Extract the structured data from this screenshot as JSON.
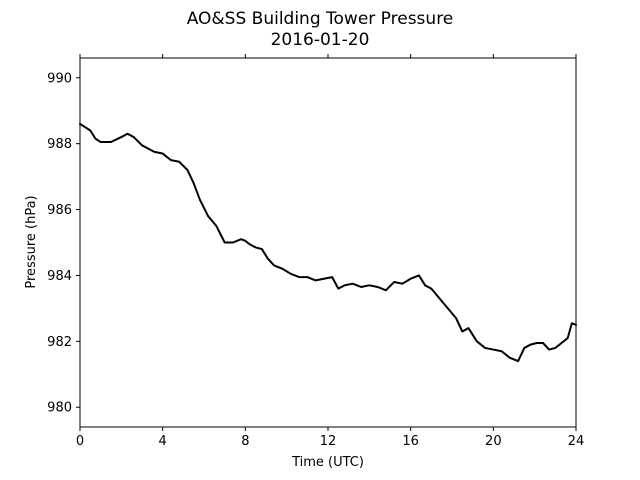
{
  "chart_data": {
    "type": "line",
    "title": "AO&SS Building Tower Pressure",
    "subtitle": "2016-01-20",
    "xlabel": "Time (UTC)",
    "ylabel": "Pressure (hPa)",
    "xlim": [
      0,
      24
    ],
    "ylim": [
      979.4,
      990.6
    ],
    "xticks": [
      0,
      4,
      8,
      12,
      16,
      20,
      24
    ],
    "xtick_labels": [
      "0",
      "4",
      "8",
      "12",
      "16",
      "20",
      "24"
    ],
    "yticks": [
      980,
      982,
      984,
      986,
      988,
      990
    ],
    "ytick_labels": [
      "980",
      "982",
      "984",
      "986",
      "988",
      "990"
    ],
    "grid": false,
    "legend": "none",
    "line_color": "#000000",
    "series": [
      {
        "x": [
          0,
          0.25,
          0.5,
          0.75,
          1.0,
          1.5,
          2.0,
          2.3,
          2.6,
          3.0,
          3.3,
          3.6,
          4.0,
          4.4,
          4.8,
          5.2,
          5.5,
          5.8,
          6.2,
          6.6,
          7.0,
          7.4,
          7.8,
          8.0,
          8.2,
          8.5,
          8.8,
          9.1,
          9.4,
          9.8,
          10.2,
          10.6,
          11.0,
          11.4,
          11.8,
          12.2,
          12.5,
          12.8,
          13.2,
          13.6,
          14.0,
          14.4,
          14.8,
          15.2,
          15.6,
          16.0,
          16.4,
          16.7,
          17.0,
          17.4,
          17.8,
          18.2,
          18.5,
          18.8,
          19.2,
          19.6,
          20.0,
          20.4,
          20.8,
          21.2,
          21.5,
          21.8,
          22.1,
          22.4,
          22.7,
          23.0,
          23.3,
          23.6,
          23.8,
          24.0
        ],
        "y": [
          988.6,
          988.5,
          988.4,
          988.15,
          988.05,
          988.05,
          988.2,
          988.3,
          988.2,
          987.95,
          987.85,
          987.75,
          987.7,
          987.5,
          987.45,
          987.2,
          986.8,
          986.3,
          985.8,
          985.5,
          985.0,
          985.0,
          985.1,
          985.05,
          984.95,
          984.85,
          984.8,
          984.5,
          984.3,
          984.2,
          984.05,
          983.95,
          983.95,
          983.85,
          983.9,
          983.95,
          983.6,
          983.7,
          983.75,
          983.65,
          983.7,
          983.65,
          983.55,
          983.8,
          983.75,
          983.9,
          984.0,
          983.7,
          983.6,
          983.3,
          983.0,
          982.7,
          982.3,
          982.4,
          982.0,
          981.8,
          981.75,
          981.7,
          981.5,
          981.4,
          981.8,
          981.9,
          981.95,
          981.95,
          981.75,
          981.8,
          981.95,
          982.1,
          982.55,
          982.5
        ]
      }
    ]
  }
}
